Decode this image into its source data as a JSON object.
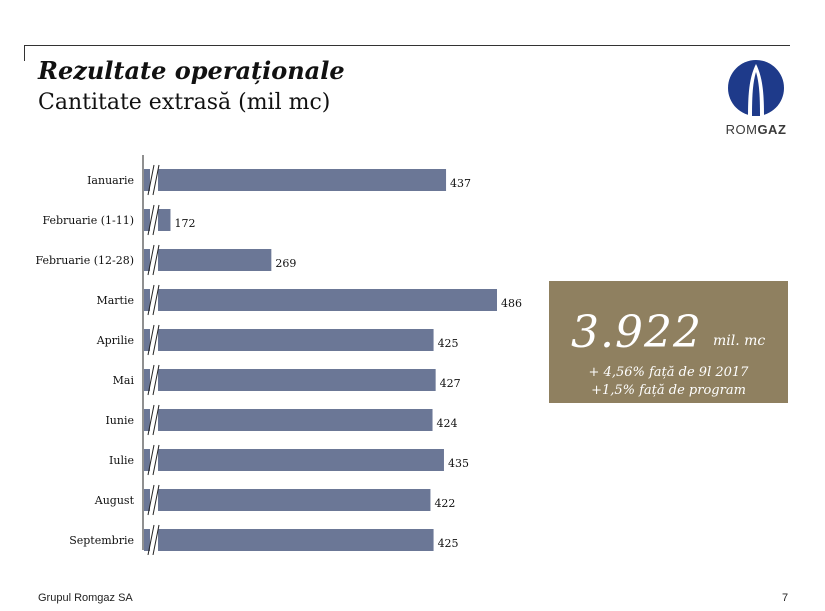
{
  "header": {
    "title": "Rezultate operaționale",
    "subtitle": "Cantitate extrasă (mil mc)"
  },
  "logo": {
    "text_regular": "ROM",
    "text_bold": "GAZ",
    "colors": {
      "circle": "#1e3a8a",
      "flame": "#ffffff"
    }
  },
  "chart_data": {
    "type": "bar",
    "orientation": "horizontal",
    "categories": [
      "Ianuarie",
      "Februarie (1-11)",
      "Februarie (12-28)",
      "Martie",
      "Aprilie",
      "Mai",
      "Iunie",
      "Iulie",
      "August",
      "Septembrie"
    ],
    "values": [
      437,
      172,
      269,
      486,
      425,
      427,
      424,
      435,
      422,
      425
    ],
    "data_labels": [
      "437",
      "172",
      "269",
      "486",
      "425",
      "427",
      "424",
      "435",
      "422",
      "425"
    ],
    "title": "",
    "xlabel": "",
    "ylabel": "",
    "axis_break": true,
    "grid": false,
    "bar_color": "#6b7796"
  },
  "summary": {
    "value": "3.922",
    "unit": "mil. mc",
    "line1": "+ 4,56% față de 9l 2017",
    "line2": "+1,5% față de program",
    "background": "#8f8060"
  },
  "footer": {
    "company": "Grupul Romgaz SA",
    "page": "7"
  }
}
